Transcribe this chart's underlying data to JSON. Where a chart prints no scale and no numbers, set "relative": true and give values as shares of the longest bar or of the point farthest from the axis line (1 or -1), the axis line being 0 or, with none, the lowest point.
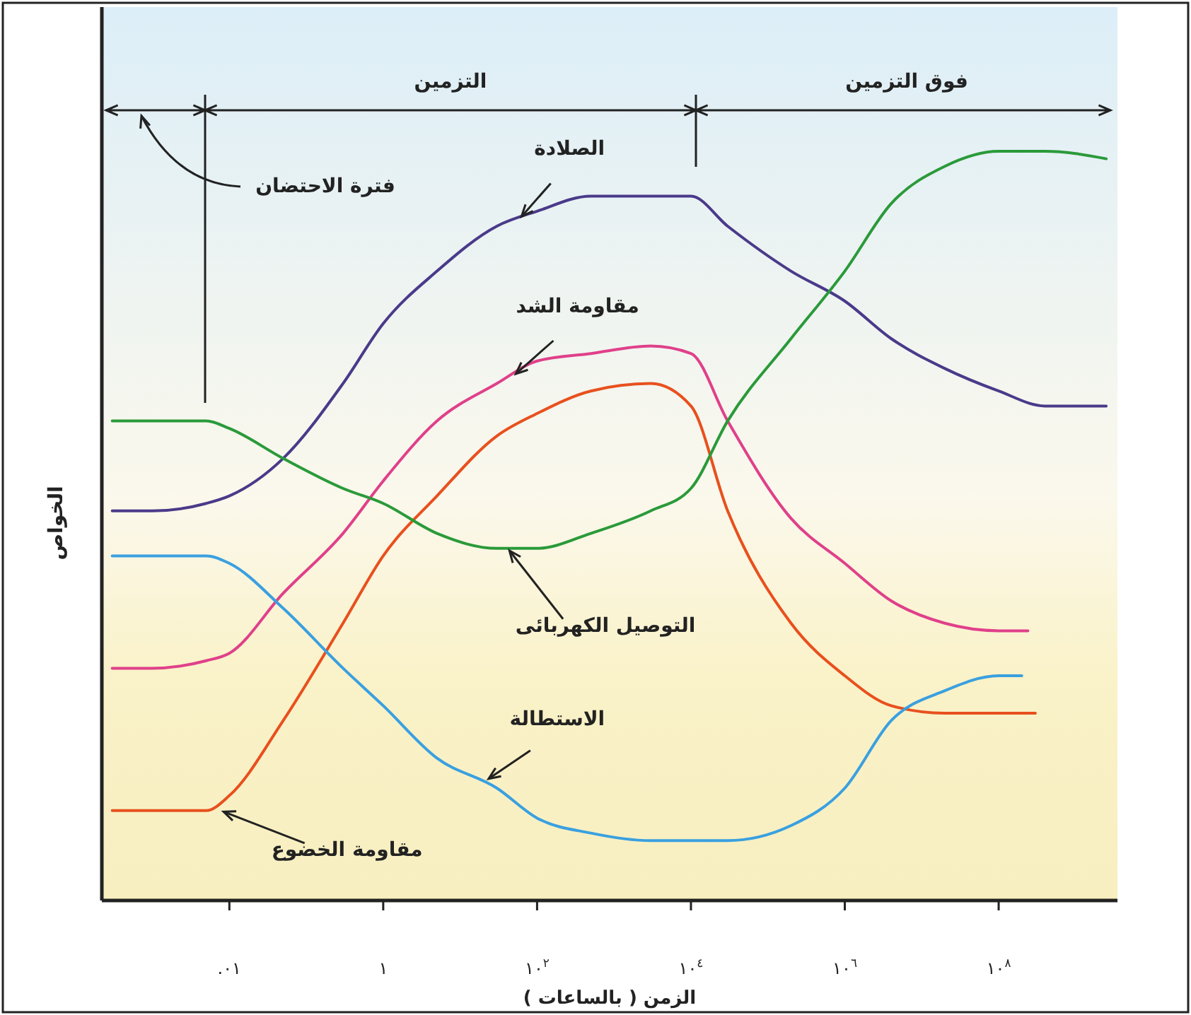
{
  "chart_data": {
    "type": "line",
    "relative": true,
    "log": "x",
    "grid": false,
    "marker": "none",
    "line_style": "solid",
    "xlabel": "الزمن ( بالساعات )",
    "ylabel": "الخواص",
    "xlim": [
      0.00022,
      3500000000
    ],
    "xticks": [
      {
        "value": 0.01,
        "label": ".٠١"
      },
      {
        "value": 1,
        "label": "١"
      },
      {
        "value": 100,
        "label": "١٠$^{٢}$"
      },
      {
        "value": 10000,
        "label": "١٠$^{٤}$"
      },
      {
        "value": 1000000,
        "label": "١٠$^{٦}$"
      },
      {
        "value": 100000000,
        "label": "١٠$^{٨}$"
      }
    ],
    "tick_labels": "x",
    "series": [
      {
        "color": "#4a3a8a",
        "x": [
          0.0003,
          0.001,
          0.005,
          0.01,
          0.05,
          0.3,
          1,
          5,
          30,
          100,
          500,
          3000,
          10000,
          30000,
          200000,
          1000000,
          4000000,
          20000000,
          100000000,
          400000000,
          2500000000
        ],
        "values": [
          0.52,
          0.52,
          0.53,
          0.54,
          0.59,
          0.69,
          0.77,
          0.84,
          0.9,
          0.92,
          0.94,
          0.94,
          0.94,
          0.9,
          0.84,
          0.8,
          0.75,
          0.71,
          0.68,
          0.66,
          0.66
        ]
      },
      {
        "color": "#e0408a",
        "x": [
          0.0003,
          0.001,
          0.005,
          0.01,
          0.05,
          0.3,
          1,
          5,
          30,
          100,
          500,
          3000,
          10000,
          30000,
          200000,
          1000000,
          4000000,
          20000000,
          100000000,
          240000000
        ],
        "values": [
          0.31,
          0.31,
          0.32,
          0.33,
          0.41,
          0.49,
          0.56,
          0.64,
          0.69,
          0.72,
          0.73,
          0.74,
          0.73,
          0.64,
          0.51,
          0.45,
          0.4,
          0.37,
          0.36,
          0.36
        ]
      },
      {
        "color": "#e8501e",
        "x": [
          0.0003,
          0.001,
          0.005,
          0.01,
          0.05,
          0.3,
          1,
          5,
          30,
          100,
          500,
          3000,
          10000,
          30000,
          200000,
          1000000,
          4000000,
          20000000,
          100000000,
          300000000
        ],
        "values": [
          0.12,
          0.12,
          0.12,
          0.14,
          0.24,
          0.37,
          0.46,
          0.54,
          0.62,
          0.65,
          0.68,
          0.69,
          0.66,
          0.52,
          0.37,
          0.3,
          0.26,
          0.25,
          0.25,
          0.25
        ]
      },
      {
        "color": "#2a9a3a",
        "x": [
          0.0003,
          0.001,
          0.005,
          0.01,
          0.05,
          0.3,
          1,
          5,
          30,
          100,
          500,
          3000,
          10000,
          30000,
          200000,
          1000000,
          4000000,
          20000000,
          100000000,
          400000000,
          2500000000
        ],
        "values": [
          0.64,
          0.64,
          0.64,
          0.63,
          0.59,
          0.55,
          0.53,
          0.49,
          0.47,
          0.47,
          0.49,
          0.52,
          0.55,
          0.64,
          0.75,
          0.84,
          0.93,
          0.98,
          1.0,
          1.0,
          0.99
        ]
      },
      {
        "color": "#3aa0e0",
        "x": [
          0.0003,
          0.001,
          0.005,
          0.01,
          0.05,
          0.3,
          1,
          5,
          30,
          100,
          500,
          3000,
          10000,
          30000,
          200000,
          1000000,
          4000000,
          20000000,
          100000000,
          200000000
        ],
        "values": [
          0.46,
          0.46,
          0.46,
          0.45,
          0.39,
          0.31,
          0.26,
          0.19,
          0.15,
          0.11,
          0.09,
          0.08,
          0.08,
          0.08,
          0.1,
          0.15,
          0.24,
          0.28,
          0.3,
          0.3
        ]
      }
    ],
    "annotations": [
      "التزمين",
      "فوق التزمين",
      "فترة الاحتضان",
      {
        "text": "الصلادة",
        "x": 60,
        "y": 0.91
      },
      {
        "text": "مقاومة الشد",
        "x": 50,
        "y": 0.7
      },
      {
        "text": "التوصيل الكهربائى",
        "x": 40,
        "y": 0.47
      },
      {
        "text": "الاستطالة",
        "x": 22,
        "y": 0.16
      },
      {
        "text": "مقاومة الخضوع",
        "x": 0.0075,
        "y": 0.12
      }
    ]
  }
}
